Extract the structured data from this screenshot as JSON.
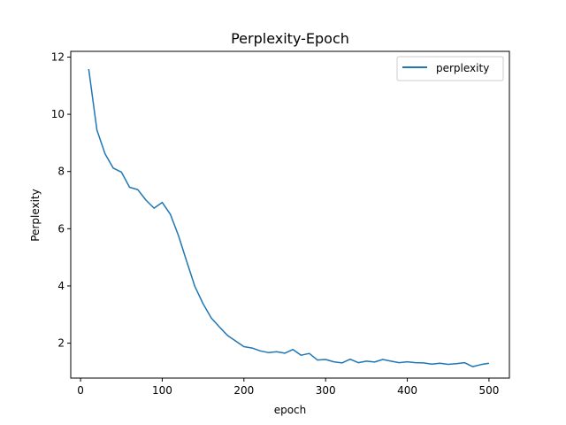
{
  "chart_data": {
    "type": "line",
    "title": "Perplexity-Epoch",
    "xlabel": "epoch",
    "ylabel": "Perplexity",
    "xlim": [
      -12,
      525
    ],
    "ylim": [
      0.78,
      12.2
    ],
    "xticks": [
      0,
      100,
      200,
      300,
      400,
      500
    ],
    "yticks": [
      2,
      4,
      6,
      8,
      10,
      12
    ],
    "grid": false,
    "legend_position": "top-right",
    "series": [
      {
        "name": "perplexity",
        "color": "#1f77b4",
        "x": [
          10,
          20,
          30,
          40,
          50,
          60,
          70,
          80,
          90,
          100,
          110,
          120,
          130,
          140,
          150,
          160,
          170,
          180,
          190,
          200,
          210,
          220,
          230,
          240,
          250,
          260,
          270,
          280,
          290,
          300,
          310,
          320,
          330,
          340,
          350,
          360,
          370,
          380,
          390,
          400,
          410,
          420,
          430,
          440,
          450,
          460,
          470,
          480,
          490,
          500
        ],
        "y": [
          11.58,
          9.45,
          8.62,
          8.12,
          7.98,
          7.45,
          7.37,
          7.0,
          6.72,
          6.92,
          6.5,
          5.75,
          4.85,
          3.98,
          3.38,
          2.88,
          2.57,
          2.27,
          2.07,
          1.88,
          1.83,
          1.73,
          1.67,
          1.7,
          1.65,
          1.78,
          1.58,
          1.64,
          1.41,
          1.43,
          1.35,
          1.31,
          1.44,
          1.32,
          1.37,
          1.34,
          1.43,
          1.37,
          1.32,
          1.35,
          1.32,
          1.31,
          1.27,
          1.3,
          1.26,
          1.28,
          1.32,
          1.18,
          1.25,
          1.3
        ]
      }
    ]
  }
}
